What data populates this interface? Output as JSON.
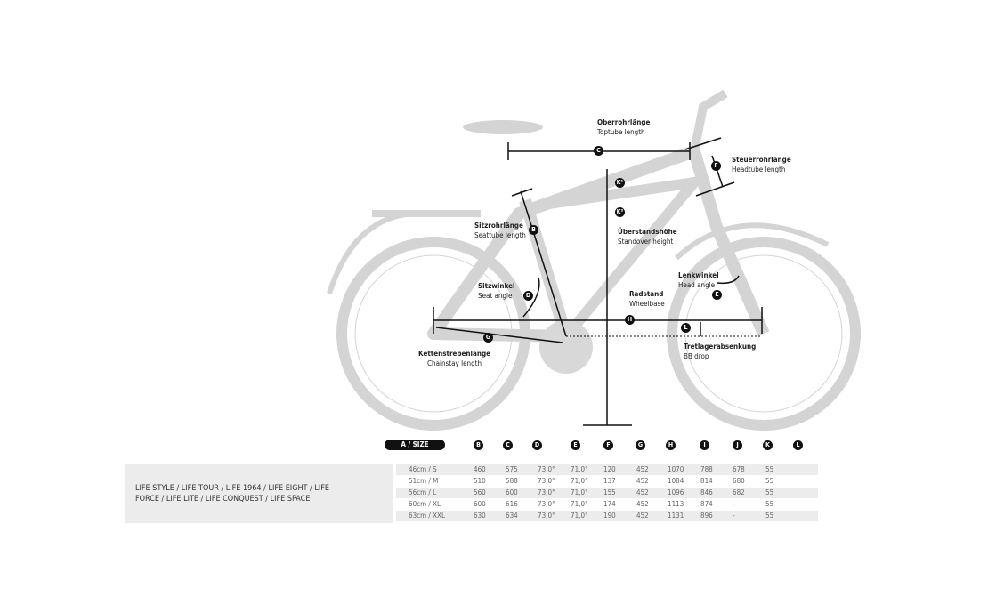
{
  "labels": {
    "toptube": {
      "de": "Oberrohrlänge",
      "en": "Toptube length",
      "key": "C"
    },
    "headtube": {
      "de": "Steuerrohrlänge",
      "en": "Headtube length",
      "key": "F"
    },
    "standover": {
      "de": "Überstandshöhe",
      "en": "Standover height",
      "key1": "K¹",
      "key2": "K²"
    },
    "seattube": {
      "de": "Sitzrohrlänge",
      "en": "Seattube length",
      "key": "B"
    },
    "seatangle": {
      "de": "Sitzwinkel",
      "en": "Seat angle",
      "key": "D"
    },
    "headangle": {
      "de": "Lenkwinkel",
      "en": "Head angle",
      "key": "E"
    },
    "wheelbase": {
      "de": "Radstand",
      "en": "Wheelbase",
      "key": "H"
    },
    "bbdrop": {
      "de": "Tretlagerabsenkung",
      "en": "BB drop",
      "key": "L"
    },
    "chainstay": {
      "de": "Kettenstrebenlänge",
      "en": "Chainstay length",
      "key": "G"
    }
  },
  "table": {
    "size_header": "A / SIZE",
    "headers": [
      "B",
      "C",
      "D",
      "E",
      "F",
      "G",
      "H",
      "I",
      "J",
      "K",
      "L"
    ],
    "rows": [
      [
        "46cm / S",
        "460",
        "575",
        "73,0°",
        "71,0°",
        "120",
        "452",
        "1070",
        "788",
        "678",
        "55",
        ""
      ],
      [
        "51cm / M",
        "510",
        "588",
        "73,0°",
        "71,0°",
        "137",
        "452",
        "1084",
        "814",
        "680",
        "55",
        ""
      ],
      [
        "56cm / L",
        "560",
        "600",
        "73,0°",
        "71,0°",
        "155",
        "452",
        "1096",
        "846",
        "682",
        "55",
        ""
      ],
      [
        "60cm / XL",
        "600",
        "616",
        "73,0°",
        "71,0°",
        "174",
        "452",
        "1113",
        "874",
        "-",
        "55",
        ""
      ],
      [
        "63cm / XXL",
        "630",
        "634",
        "73,0°",
        "71,0°",
        "190",
        "452",
        "1131",
        "896",
        "-",
        "55",
        ""
      ]
    ]
  },
  "models": "LIFE STYLE / LIFE TOUR / LIFE 1964 / LIFE EIGHT / LIFE\nFORCE / LIFE LITE / LIFE CONQUEST / LIFE SPACE"
}
